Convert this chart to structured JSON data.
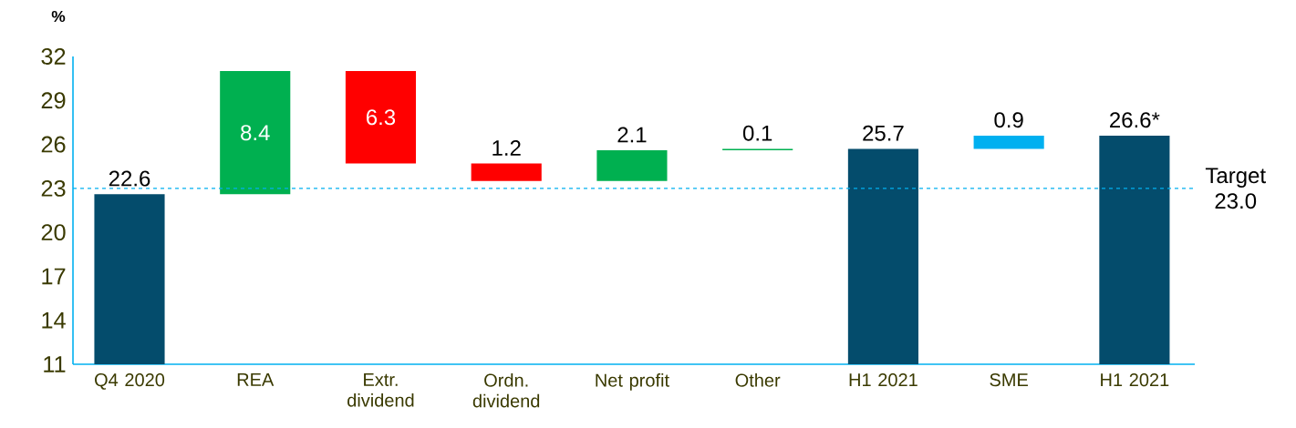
{
  "chart_data": {
    "type": "bar",
    "ylabel": "%",
    "categories": [
      "Q4 2020",
      "REA",
      "Extr. dividend",
      "Ordn. dividend",
      "Net profit",
      "Other",
      "H1 2021",
      "SME",
      "H1 2021"
    ],
    "values": [
      22.6,
      8.4,
      -6.3,
      -1.2,
      2.1,
      0.1,
      25.7,
      0.9,
      26.6
    ],
    "base": [
      null,
      22.6,
      31.0,
      24.7,
      23.5,
      25.6,
      null,
      25.7,
      null
    ],
    "colors": [
      "#044c6c",
      "#00b050",
      "#ff0000",
      "#ff0000",
      "#00b050",
      "#00b050",
      "#044c6c",
      "#00b0f0",
      "#044c6c"
    ],
    "value_labels": [
      "22.6",
      "8.4",
      "6.3",
      "1.2",
      "2.1",
      "0.1",
      "25.7",
      "0.9",
      "26.6*"
    ],
    "ylim": [
      11,
      32
    ],
    "yticks": [
      11,
      14,
      17,
      20,
      23,
      26,
      29,
      32
    ],
    "ref_lines": [
      {
        "axis": "y",
        "value": 23.0,
        "label": "Target 23.0",
        "color": "#00b0f0",
        "line_style": "dashed"
      }
    ]
  }
}
